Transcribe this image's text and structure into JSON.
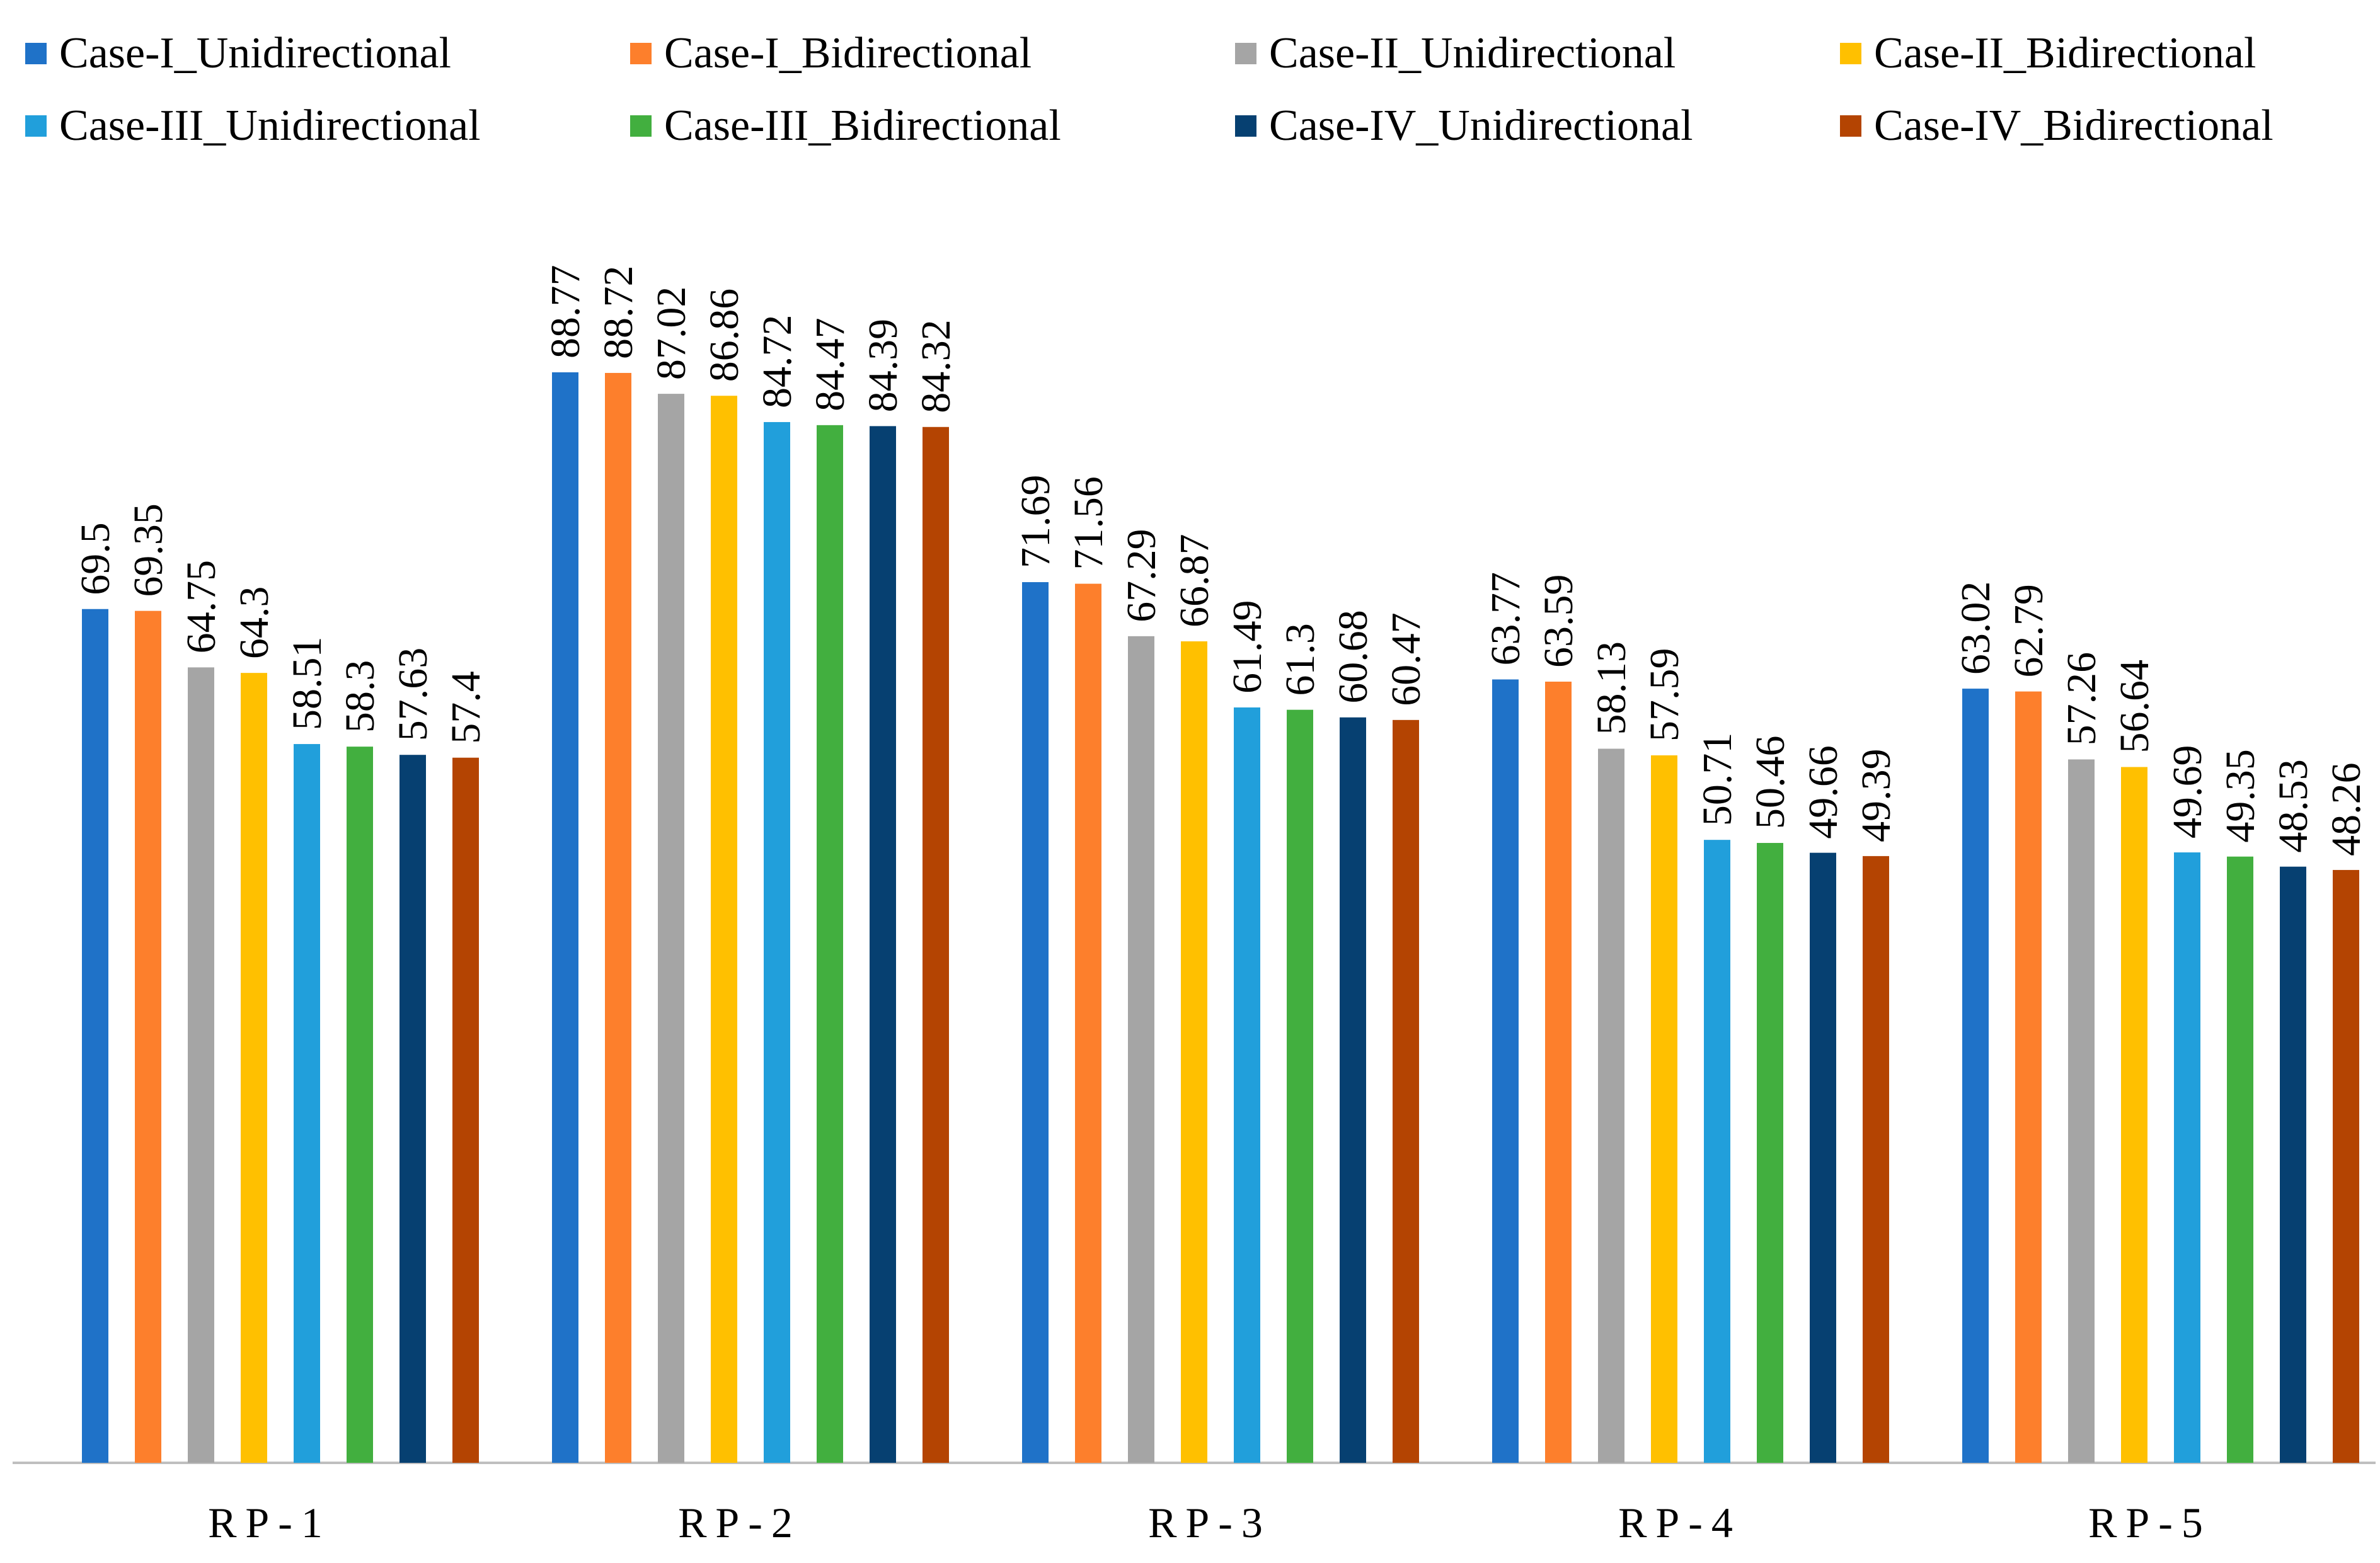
{
  "chart_data": {
    "type": "bar",
    "title": "",
    "xlabel": "",
    "ylabel": "",
    "ylim": [
      0,
      100
    ],
    "grid": false,
    "legend_position": "top",
    "categories": [
      "RP-1",
      "RP-2",
      "RP-3",
      "RP-4",
      "RP-5"
    ],
    "series": [
      {
        "name": "Case-I_Unidirectional",
        "color": "#1f72c8",
        "values": [
          69.5,
          88.77,
          71.69,
          63.77,
          63.02
        ]
      },
      {
        "name": "Case-I_Bidirectional",
        "color": "#fd7f2c",
        "values": [
          69.35,
          88.72,
          71.56,
          63.59,
          62.79
        ]
      },
      {
        "name": "Case-II_Unidirectional",
        "color": "#a5a5a5",
        "values": [
          64.75,
          87.02,
          67.29,
          58.13,
          57.26
        ]
      },
      {
        "name": "Case-II_Bidirectional",
        "color": "#ffc000",
        "values": [
          64.3,
          86.86,
          66.87,
          57.59,
          56.64
        ]
      },
      {
        "name": "Case-III_Unidirectional",
        "color": "#219fdb",
        "values": [
          58.51,
          84.72,
          61.49,
          50.71,
          49.69
        ]
      },
      {
        "name": "Case-III_Bidirectional",
        "color": "#42af3f",
        "values": [
          58.3,
          84.47,
          61.3,
          50.46,
          49.35
        ]
      },
      {
        "name": "Case-IV_Unidirectional",
        "color": "#064071",
        "values": [
          57.63,
          84.39,
          60.68,
          49.66,
          48.53
        ]
      },
      {
        "name": "Case-IV_Bidirectional",
        "color": "#b44402",
        "values": [
          57.4,
          84.32,
          60.47,
          49.39,
          48.26
        ]
      }
    ]
  }
}
